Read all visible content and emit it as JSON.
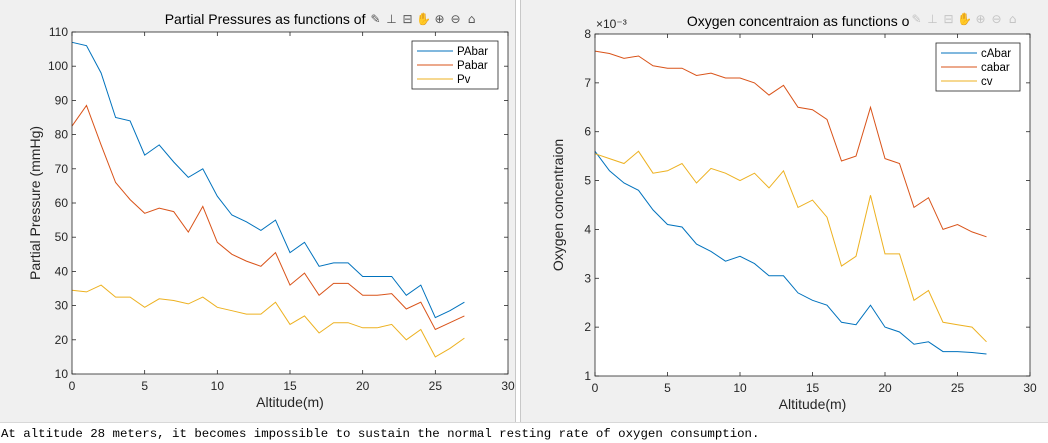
{
  "console": {
    "message": "At altitude 28 meters, it becomes impossible to sustain the normal resting rate of oxygen consumption."
  },
  "toolbar": {
    "icons": [
      "brush-icon",
      "data-tip-icon",
      "save-icon",
      "pan-hand-icon",
      "zoom-in-icon",
      "zoom-out-icon",
      "home-icon"
    ]
  },
  "chart_data": [
    {
      "type": "line",
      "title": "Partial Pressures as functions of Altitude",
      "xlabel": "Altitude(m)",
      "ylabel": "Partial Pressure (mmHg)",
      "xlim": [
        0,
        30
      ],
      "ylim": [
        10,
        110
      ],
      "xticks": [
        0,
        5,
        10,
        15,
        20,
        25,
        30
      ],
      "yticks": [
        10,
        20,
        30,
        40,
        50,
        60,
        70,
        80,
        90,
        100,
        110
      ],
      "legend_position": "top-right",
      "grid": false,
      "x": [
        0,
        1,
        2,
        3,
        4,
        5,
        6,
        7,
        8,
        9,
        10,
        11,
        12,
        13,
        14,
        15,
        16,
        17,
        18,
        19,
        20,
        21,
        22,
        23,
        24,
        25,
        26,
        27
      ],
      "series": [
        {
          "name": "PAbar",
          "color": "#0072bd",
          "values": [
            107,
            106,
            98,
            85,
            84,
            74,
            77,
            72,
            67.5,
            70,
            62,
            56.5,
            54.5,
            52,
            55,
            45.5,
            48.5,
            41.5,
            42.5,
            42.5,
            38.5,
            38.5,
            38.5,
            33,
            36,
            26.5,
            28.5,
            31
          ]
        },
        {
          "name": "Pabar",
          "color": "#d95319",
          "values": [
            82.5,
            88.5,
            77,
            66,
            61,
            57,
            58.5,
            57.5,
            51.5,
            59,
            48.5,
            45,
            43,
            41.5,
            45.5,
            36,
            39.5,
            33,
            36.5,
            36.5,
            33,
            33,
            33.5,
            29,
            31,
            23,
            25,
            27
          ]
        },
        {
          "name": "Pv",
          "color": "#edb120",
          "values": [
            34.5,
            34,
            36,
            32.5,
            32.5,
            29.5,
            32,
            31.5,
            30.5,
            32.5,
            29.5,
            28.5,
            27.5,
            27.5,
            31,
            24.5,
            27,
            22,
            25,
            25,
            23.5,
            23.5,
            24.5,
            20,
            23,
            15,
            17.5,
            20.5
          ]
        }
      ]
    },
    {
      "type": "line",
      "title": "Oxygen concentraion as functions of Altitude",
      "xlabel": "Altitude(m)",
      "ylabel": "Oxygen concentraion",
      "scale_label": "×10⁻³",
      "xlim": [
        0,
        30
      ],
      "ylim": [
        1,
        8
      ],
      "xticks": [
        0,
        5,
        10,
        15,
        20,
        25,
        30
      ],
      "yticks": [
        1,
        2,
        3,
        4,
        5,
        6,
        7,
        8
      ],
      "legend_position": "top-right",
      "grid": false,
      "x": [
        0,
        1,
        2,
        3,
        4,
        5,
        6,
        7,
        8,
        9,
        10,
        11,
        12,
        13,
        14,
        15,
        16,
        17,
        18,
        19,
        20,
        21,
        22,
        23,
        24,
        25,
        26,
        27
      ],
      "series": [
        {
          "name": "cAbar",
          "color": "#0072bd",
          "values": [
            5.6,
            5.2,
            4.95,
            4.8,
            4.4,
            4.1,
            4.05,
            3.7,
            3.55,
            3.35,
            3.45,
            3.3,
            3.05,
            3.05,
            2.7,
            2.55,
            2.45,
            2.1,
            2.05,
            2.45,
            2.0,
            1.9,
            1.65,
            1.7,
            1.5,
            1.5,
            1.48,
            1.45
          ]
        },
        {
          "name": "cabar",
          "color": "#d95319",
          "values": [
            7.65,
            7.6,
            7.5,
            7.55,
            7.35,
            7.3,
            7.3,
            7.15,
            7.2,
            7.1,
            7.1,
            7.0,
            6.75,
            6.95,
            6.5,
            6.45,
            6.25,
            5.4,
            5.5,
            6.5,
            5.45,
            5.35,
            4.45,
            4.65,
            4.0,
            4.1,
            3.95,
            3.85
          ]
        },
        {
          "name": "cv",
          "color": "#edb120",
          "values": [
            5.55,
            5.45,
            5.35,
            5.6,
            5.15,
            5.2,
            5.35,
            4.95,
            5.25,
            5.15,
            5.0,
            5.15,
            4.85,
            5.2,
            4.45,
            4.6,
            4.25,
            3.25,
            3.45,
            4.7,
            3.5,
            3.5,
            2.55,
            2.75,
            2.1,
            2.05,
            2.0,
            1.7
          ]
        }
      ]
    }
  ]
}
